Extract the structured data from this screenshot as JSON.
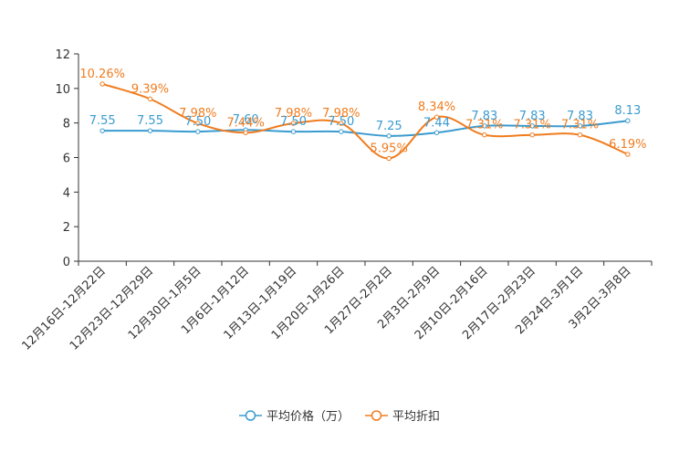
{
  "chart_data": {
    "type": "line",
    "title": "",
    "xlabel": "",
    "ylabel": "",
    "ylim": [
      0,
      12
    ],
    "yticks": [
      "0",
      "2",
      "4",
      "6",
      "8",
      "10",
      "12"
    ],
    "categories": [
      "12月16日-12月22日",
      "12月23日-12月29日",
      "12月30日-1月5日",
      "1月6日-1月12日",
      "1月13日-1月19日",
      "1月20日-1月26日",
      "1月27日-2月2日",
      "2月3日-2月9日",
      "2月10日-2月16日",
      "2月17日-2月23日",
      "2月24日-3月1日",
      "3月2日-3月8日"
    ],
    "series": [
      {
        "name": "平均价格（万）",
        "color": "#3a9bd0",
        "values": [
          7.55,
          7.55,
          7.5,
          7.6,
          7.5,
          7.5,
          7.25,
          7.44,
          7.83,
          7.83,
          7.83,
          8.13
        ],
        "labels": [
          "7.55",
          "7.55",
          "7.50",
          "7.60",
          "7.50",
          "7.50",
          "7.25",
          "7.44",
          "7.83",
          "7.83",
          "7.83",
          "8.13"
        ]
      },
      {
        "name": "平均折扣",
        "color": "#f07c1e",
        "values": [
          10.26,
          9.39,
          7.98,
          7.44,
          7.98,
          7.98,
          5.95,
          8.34,
          7.31,
          7.31,
          7.31,
          6.19
        ],
        "labels": [
          "10.26%",
          "9.39%",
          "7.98%",
          "7.44%",
          "7.98%",
          "7.98%",
          "5.95%",
          "8.34%",
          "7.31%",
          "7.31%",
          "7.31%",
          "6.19%"
        ]
      }
    ],
    "legend": "bottom-center"
  }
}
